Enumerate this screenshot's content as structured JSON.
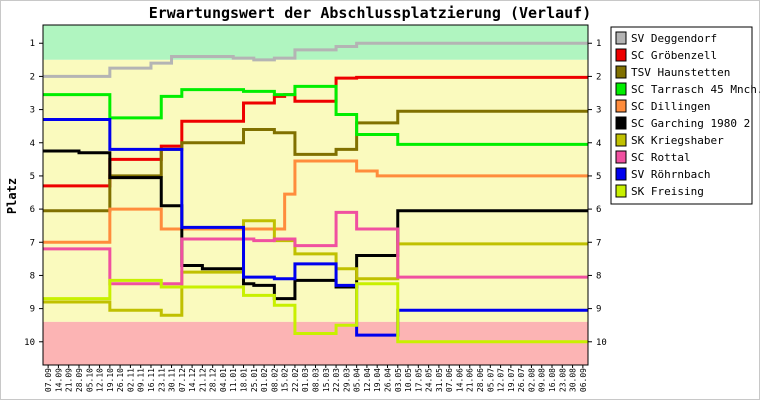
{
  "chart_data": {
    "type": "line",
    "title": "Erwartungswert der Abschlussplatzierung (Verlauf)",
    "ylabel": "Platz",
    "xlabel": "",
    "y_ticks": [
      1,
      2,
      3,
      4,
      5,
      6,
      7,
      8,
      9,
      10
    ],
    "ylim": [
      0.45,
      10.7
    ],
    "y_inverted": true,
    "x": [
      "07.09",
      "14.09",
      "21.09",
      "28.09",
      "05.10",
      "12.10",
      "19.10",
      "26.10",
      "02.11",
      "09.11",
      "16.11",
      "23.11",
      "30.11",
      "07.12",
      "14.12",
      "21.12",
      "28.12",
      "04.01",
      "11.01",
      "18.01",
      "25.01",
      "01.02",
      "08.02",
      "15.02",
      "22.02",
      "01.03",
      "08.03",
      "15.03",
      "22.03",
      "29.03",
      "05.04",
      "12.04",
      "19.04",
      "26.04",
      "03.05",
      "10.05",
      "17.05",
      "24.05",
      "31.05",
      "07.06",
      "14.06",
      "21.06",
      "28.06",
      "05.07",
      "12.07",
      "19.07",
      "26.07",
      "02.08",
      "09.08",
      "16.08",
      "23.08",
      "30.08",
      "06.09"
    ],
    "bands": [
      {
        "from": 0.45,
        "to": 1.5,
        "color": "#b0f5c0"
      },
      {
        "from": 1.5,
        "to": 9.4,
        "color": "#fafabe"
      },
      {
        "from": 9.4,
        "to": 10.7,
        "color": "#fcb4b4"
      }
    ],
    "legend_position": "right",
    "series": [
      {
        "name": "SV Deggendorf",
        "color": "#b4b4b4",
        "values": [
          2,
          2,
          2,
          2,
          2,
          2,
          1.75,
          1.75,
          1.75,
          1.75,
          1.6,
          1.6,
          1.4,
          1.4,
          1.4,
          1.4,
          1.4,
          1.4,
          1.45,
          1.45,
          1.5,
          1.5,
          1.45,
          1.45,
          1.2,
          1.2,
          1.2,
          1.2,
          1.1,
          1.1,
          1,
          1,
          1,
          1,
          1,
          1,
          1,
          1,
          1,
          1,
          1,
          1,
          1,
          1,
          1,
          1,
          1,
          1,
          1,
          1,
          1,
          1,
          1
        ]
      },
      {
        "name": "SC Gröbenzell",
        "color": "#ee0000",
        "values": [
          5.3,
          5.3,
          5.3,
          5.3,
          5.3,
          5.3,
          4.5,
          4.5,
          4.5,
          4.5,
          4.5,
          4.1,
          4.1,
          3.35,
          3.35,
          3.35,
          3.35,
          3.35,
          3.35,
          2.8,
          2.8,
          2.8,
          2.6,
          2.55,
          2.75,
          2.75,
          2.75,
          2.75,
          2.05,
          2.05,
          2.03,
          2.03,
          2.03,
          2.03,
          2.03,
          2.03,
          2.03,
          2.03,
          2.03,
          2.03,
          2.03,
          2.03,
          2.03,
          2.03,
          2.03,
          2.03,
          2.03,
          2.03,
          2.03,
          2.03,
          2.03,
          2.03,
          2.03
        ]
      },
      {
        "name": "TSV Haunstetten",
        "color": "#807000",
        "values": [
          6.05,
          6.05,
          6.05,
          6.05,
          6.05,
          6.05,
          5,
          5,
          5,
          5,
          5,
          4.2,
          4.2,
          4,
          4,
          4,
          4,
          4,
          4,
          3.6,
          3.6,
          3.6,
          3.7,
          3.7,
          4.35,
          4.35,
          4.35,
          4.35,
          4.2,
          4.2,
          3.4,
          3.4,
          3.4,
          3.4,
          3.05,
          3.05,
          3.05,
          3.05,
          3.05,
          3.05,
          3.05,
          3.05,
          3.05,
          3.05,
          3.05,
          3.05,
          3.05,
          3.05,
          3.05,
          3.05,
          3.05,
          3.05,
          3.05
        ]
      },
      {
        "name": "SC Tarrasch 45 Mnch.",
        "color": "#00ee00",
        "values": [
          2.55,
          2.55,
          2.55,
          2.55,
          2.55,
          2.55,
          3.25,
          3.25,
          3.25,
          3.25,
          3.25,
          2.6,
          2.6,
          2.4,
          2.4,
          2.4,
          2.4,
          2.4,
          2.4,
          2.45,
          2.45,
          2.45,
          2.55,
          2.55,
          2.3,
          2.3,
          2.3,
          2.3,
          3.15,
          3.15,
          3.75,
          3.75,
          3.75,
          3.75,
          4.05,
          4.05,
          4.05,
          4.05,
          4.05,
          4.05,
          4.05,
          4.05,
          4.05,
          4.05,
          4.05,
          4.05,
          4.05,
          4.05,
          4.05,
          4.05,
          4.05,
          4.05,
          4.05
        ]
      },
      {
        "name": "SC Dillingen",
        "color": "#ff8c3c",
        "values": [
          7,
          7,
          7,
          7,
          7,
          7,
          6,
          6,
          6,
          6,
          6,
          6.6,
          6.6,
          6.6,
          6.6,
          6.6,
          6.6,
          6.6,
          6.6,
          6.6,
          6.6,
          6.6,
          6.6,
          5.55,
          4.55,
          4.55,
          4.55,
          4.55,
          4.55,
          4.55,
          4.85,
          4.85,
          5,
          5,
          5,
          5,
          5,
          5,
          5,
          5,
          5,
          5,
          5,
          5,
          5,
          5,
          5,
          5,
          5,
          5,
          5,
          5,
          5
        ]
      },
      {
        "name": "SC Garching 1980 2",
        "color": "#000000",
        "values": [
          4.25,
          4.25,
          4.25,
          4.3,
          4.3,
          4.3,
          5.05,
          5.05,
          5.05,
          5.05,
          5.05,
          5.9,
          5.9,
          7.7,
          7.7,
          7.8,
          7.8,
          7.8,
          7.8,
          8.25,
          8.3,
          8.3,
          8.7,
          8.7,
          8.15,
          8.15,
          8.15,
          8.15,
          8.35,
          8.35,
          7.4,
          7.4,
          7.4,
          7.4,
          6.05,
          6.05,
          6.05,
          6.05,
          6.05,
          6.05,
          6.05,
          6.05,
          6.05,
          6.05,
          6.05,
          6.05,
          6.05,
          6.05,
          6.05,
          6.05,
          6.05,
          6.05,
          6.05
        ]
      },
      {
        "name": "SK Kriegshaber",
        "color": "#c0c000",
        "values": [
          8.8,
          8.8,
          8.8,
          8.8,
          8.8,
          8.8,
          9.05,
          9.05,
          9.05,
          9.05,
          9.05,
          9.2,
          9.2,
          7.9,
          7.9,
          7.9,
          7.9,
          7.9,
          7.9,
          6.35,
          6.35,
          6.35,
          6.95,
          6.95,
          7.35,
          7.35,
          7.35,
          7.35,
          7.8,
          7.8,
          8.1,
          8.1,
          8.1,
          8.1,
          7.05,
          7.05,
          7.05,
          7.05,
          7.05,
          7.05,
          7.05,
          7.05,
          7.05,
          7.05,
          7.05,
          7.05,
          7.05,
          7.05,
          7.05,
          7.05,
          7.05,
          7.05,
          7.05
        ]
      },
      {
        "name": "SC Rottal",
        "color": "#f050a0",
        "values": [
          7.2,
          7.2,
          7.2,
          7.2,
          7.2,
          7.2,
          8.25,
          8.25,
          8.25,
          8.25,
          8.25,
          8.25,
          8.25,
          6.9,
          6.9,
          6.9,
          6.9,
          6.9,
          6.9,
          6.9,
          6.95,
          6.95,
          6.9,
          6.9,
          7.1,
          7.1,
          7.1,
          7.1,
          6.1,
          6.1,
          6.6,
          6.6,
          6.6,
          6.6,
          8.05,
          8.05,
          8.05,
          8.05,
          8.05,
          8.05,
          8.05,
          8.05,
          8.05,
          8.05,
          8.05,
          8.05,
          8.05,
          8.05,
          8.05,
          8.05,
          8.05,
          8.05,
          8.05
        ]
      },
      {
        "name": "SV Röhrnbach",
        "color": "#0000ee",
        "values": [
          3.3,
          3.3,
          3.3,
          3.3,
          3.3,
          3.3,
          4.2,
          4.2,
          4.2,
          4.2,
          4.2,
          4.2,
          4.2,
          6.55,
          6.55,
          6.55,
          6.55,
          6.55,
          6.55,
          8.05,
          8.05,
          8.05,
          8.1,
          8.1,
          7.65,
          7.65,
          7.65,
          7.65,
          8.3,
          8.3,
          9.8,
          9.8,
          9.8,
          9.8,
          9.05,
          9.05,
          9.05,
          9.05,
          9.05,
          9.05,
          9.05,
          9.05,
          9.05,
          9.05,
          9.05,
          9.05,
          9.05,
          9.05,
          9.05,
          9.05,
          9.05,
          9.05,
          9.05
        ]
      },
      {
        "name": "SK Freising",
        "color": "#c8f000",
        "values": [
          8.7,
          8.7,
          8.7,
          8.7,
          8.7,
          8.7,
          8.15,
          8.15,
          8.15,
          8.15,
          8.15,
          8.35,
          8.35,
          8.35,
          8.35,
          8.35,
          8.35,
          8.35,
          8.35,
          8.6,
          8.6,
          8.6,
          8.9,
          8.9,
          9.75,
          9.75,
          9.75,
          9.75,
          9.5,
          9.5,
          8.25,
          8.25,
          8.25,
          8.25,
          10,
          10,
          10,
          10,
          10,
          10,
          10,
          10,
          10,
          10,
          10,
          10,
          10,
          10,
          10,
          10,
          10,
          10,
          10
        ]
      }
    ]
  }
}
